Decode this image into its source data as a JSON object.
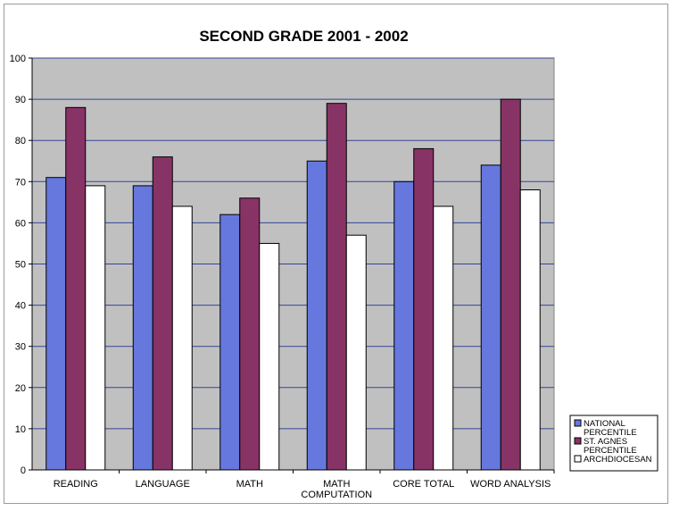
{
  "chart_data": {
    "type": "bar",
    "title": "SECOND GRADE 2001 - 2002",
    "xlabel": "",
    "ylabel": "",
    "ylim": [
      0,
      100
    ],
    "yticks": [
      0,
      10,
      20,
      30,
      40,
      50,
      60,
      70,
      80,
      90,
      100
    ],
    "grid": true,
    "legend_position": "bottom-right",
    "categories": [
      [
        "READING"
      ],
      [
        "LANGUAGE"
      ],
      [
        "MATH"
      ],
      [
        "MATH",
        "COMPUTATION"
      ],
      [
        "CORE TOTAL"
      ],
      [
        "WORD ANALYSIS"
      ]
    ],
    "series": [
      {
        "name": "NATIONAL PERCENTILE",
        "legend_lines": [
          "NATIONAL",
          "PERCENTILE"
        ],
        "color": "#6677dd",
        "values": [
          71,
          69,
          62,
          75,
          70,
          74
        ]
      },
      {
        "name": "ST. AGNES PERCENTILE",
        "legend_lines": [
          "ST. AGNES",
          "PERCENTILE"
        ],
        "color": "#883366",
        "values": [
          88,
          76,
          66,
          89,
          78,
          90
        ]
      },
      {
        "name": "ARCHDIOCESAN",
        "legend_lines": [
          "ARCHDIOCESAN"
        ],
        "color": "#ffffff",
        "values": [
          69,
          64,
          55,
          57,
          64,
          68
        ]
      }
    ],
    "plot_background": "#c0c0c0",
    "gridline_color": "#334499"
  }
}
